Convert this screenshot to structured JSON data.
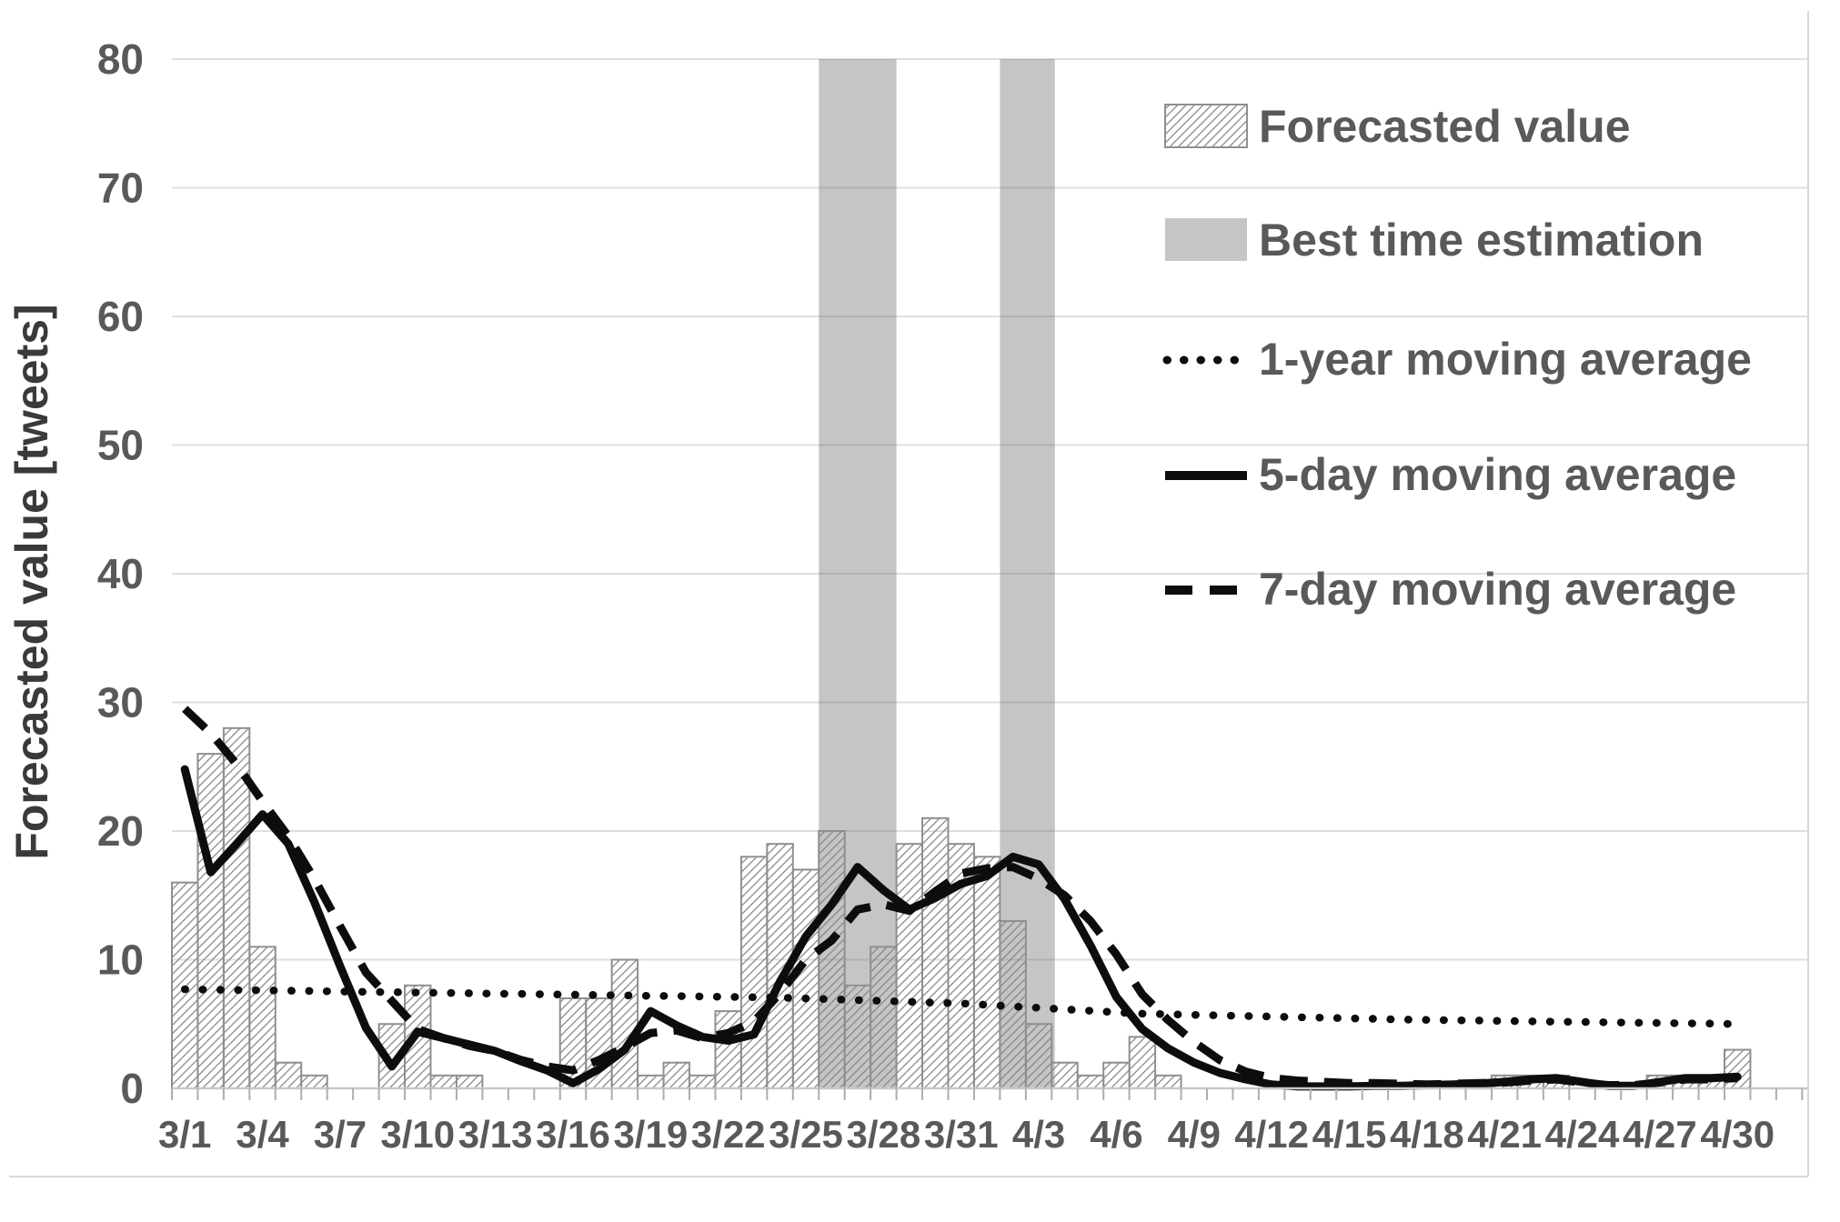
{
  "figure": {
    "kind": "statistical chart from a paper",
    "background": "#ffffff"
  },
  "y_axis": {
    "title": "Forecasted value [tweets]",
    "tick_values": [
      0,
      10,
      20,
      30,
      40,
      50,
      60,
      70,
      80
    ],
    "max": 80
  },
  "x_axis": {
    "tick_labels": [
      "3/1",
      "3/4",
      "3/7",
      "3/10",
      "3/13",
      "3/16",
      "3/19",
      "3/22",
      "3/25",
      "3/28",
      "3/31",
      "4/3",
      "4/6",
      "4/9",
      "4/12",
      "4/15",
      "4/18",
      "4/21",
      "4/24",
      "4/27",
      "4/30"
    ],
    "label_every_n_days": 3
  },
  "legend": {
    "items": [
      {
        "label": "Forecasted value",
        "swatch": "hatched-rect"
      },
      {
        "label": "Best time estimation",
        "swatch": "gray-rect"
      },
      {
        "label": "1-year moving average",
        "swatch": "dotted-line"
      },
      {
        "label": "5-day moving average",
        "swatch": "solid-line"
      },
      {
        "label": "7-day moving average",
        "swatch": "dashed-line"
      }
    ]
  },
  "colors": {
    "band_fill": "#c5c5c7",
    "grid_line": "rgba(110,110,110,0.22)",
    "axis_line": "#c9c9c9",
    "tick_mark": "#adadad",
    "bar_stroke": "#8f8f8f",
    "bar_hatch": "#868686",
    "series_line": "#0d0d0d",
    "label_text": "#595959",
    "axis_title_text": "#3a3a3a",
    "figure_border": "#d9d9d9"
  },
  "chart_data": {
    "type": "bar",
    "title": "",
    "xlabel": "",
    "ylabel": "Forecasted value [tweets]",
    "ylim": [
      0,
      80
    ],
    "grid": "horizontal",
    "legend_position": "inside-top-right",
    "x": [
      "3/1",
      "3/2",
      "3/3",
      "3/4",
      "3/5",
      "3/6",
      "3/7",
      "3/8",
      "3/9",
      "3/10",
      "3/11",
      "3/12",
      "3/13",
      "3/14",
      "3/15",
      "3/16",
      "3/17",
      "3/18",
      "3/19",
      "3/20",
      "3/21",
      "3/22",
      "3/23",
      "3/24",
      "3/25",
      "3/26",
      "3/27",
      "3/28",
      "3/29",
      "3/30",
      "3/31",
      "4/1",
      "4/2",
      "4/3",
      "4/4",
      "4/5",
      "4/6",
      "4/7",
      "4/8",
      "4/9",
      "4/10",
      "4/11",
      "4/12",
      "4/13",
      "4/14",
      "4/15",
      "4/16",
      "4/17",
      "4/18",
      "4/19",
      "4/20",
      "4/21",
      "4/22",
      "4/23",
      "4/24",
      "4/25",
      "4/26",
      "4/27",
      "4/28",
      "4/29",
      "4/30"
    ],
    "series": [
      {
        "name": "Forecasted value",
        "type": "bar",
        "values": [
          16,
          26,
          28,
          11,
          2,
          1,
          0,
          0,
          5,
          8,
          1,
          1,
          0,
          0,
          0,
          7,
          7,
          10,
          1,
          2,
          1,
          6,
          18,
          19,
          17,
          20,
          8,
          11,
          19,
          21,
          19,
          18,
          13,
          5,
          2,
          1,
          2,
          4,
          1,
          0,
          0,
          0,
          0,
          0,
          0,
          0,
          0,
          0,
          0,
          0,
          0,
          1,
          1,
          1,
          0,
          0,
          0,
          1,
          1,
          1,
          3
        ]
      },
      {
        "name": "Best time estimation",
        "type": "band",
        "ranges": [
          {
            "label": "3/26-3/28",
            "from_cell": 25,
            "to_cell": 28
          },
          {
            "label": "4/2-4/3",
            "from_cell": 32,
            "to_cell": 34.12
          }
        ]
      },
      {
        "name": "1-year moving average",
        "type": "line",
        "style": "dotted",
        "values": [
          7.7,
          7.67,
          7.64,
          7.62,
          7.59,
          7.56,
          7.53,
          7.5,
          7.48,
          7.45,
          7.42,
          7.39,
          7.36,
          7.34,
          7.31,
          7.28,
          7.25,
          7.22,
          7.19,
          7.17,
          7.14,
          7.11,
          7.08,
          7.05,
          6.99,
          6.92,
          6.86,
          6.79,
          6.73,
          6.66,
          6.6,
          6.49,
          6.37,
          6.26,
          6.14,
          6.03,
          5.91,
          5.8,
          5.76,
          5.71,
          5.67,
          5.62,
          5.58,
          5.53,
          5.49,
          5.44,
          5.4,
          5.35,
          5.32,
          5.29,
          5.27,
          5.24,
          5.21,
          5.18,
          5.16,
          5.13,
          5.1,
          5.08,
          5.05,
          5.03,
          5.0
        ]
      },
      {
        "name": "5-day moving average",
        "type": "line",
        "style": "solid",
        "values": [
          24.8,
          16.8,
          19.0,
          21.3,
          19.0,
          14.5,
          9.5,
          4.7,
          1.7,
          4.4,
          3.9,
          3.4,
          2.9,
          2.1,
          1.4,
          0.4,
          1.5,
          3.0,
          6.0,
          4.9,
          4.0,
          3.7,
          4.2,
          8.3,
          11.8,
          14.3,
          17.2,
          15.4,
          13.9,
          14.8,
          15.9,
          16.5,
          18.0,
          17.4,
          14.7,
          11.1,
          7.1,
          4.6,
          3.1,
          2.0,
          1.2,
          0.7,
          0.3,
          0.15,
          0.15,
          0.15,
          0.2,
          0.2,
          0.25,
          0.3,
          0.35,
          0.5,
          0.7,
          0.8,
          0.5,
          0.2,
          0.2,
          0.5,
          0.8,
          0.8,
          0.9
        ]
      },
      {
        "name": "7-day moving average",
        "type": "line",
        "style": "dashed",
        "values": [
          29.5,
          27.6,
          25.2,
          22.3,
          19.6,
          16.3,
          12.6,
          9.0,
          6.8,
          4.6,
          3.9,
          3.3,
          2.9,
          2.2,
          1.7,
          1.4,
          2.2,
          3.2,
          4.3,
          4.5,
          3.9,
          4.3,
          5.2,
          7.4,
          10.0,
          11.5,
          13.9,
          14.3,
          13.8,
          15.3,
          16.7,
          17.1,
          17.2,
          16.3,
          15.0,
          13.0,
          10.4,
          7.3,
          5.3,
          3.6,
          2.2,
          1.3,
          0.8,
          0.6,
          0.5,
          0.4,
          0.4,
          0.35,
          0.3,
          0.35,
          0.4,
          0.45,
          0.6,
          0.7,
          0.45,
          0.25,
          0.25,
          0.45,
          0.7,
          0.7,
          0.8
        ]
      }
    ]
  }
}
